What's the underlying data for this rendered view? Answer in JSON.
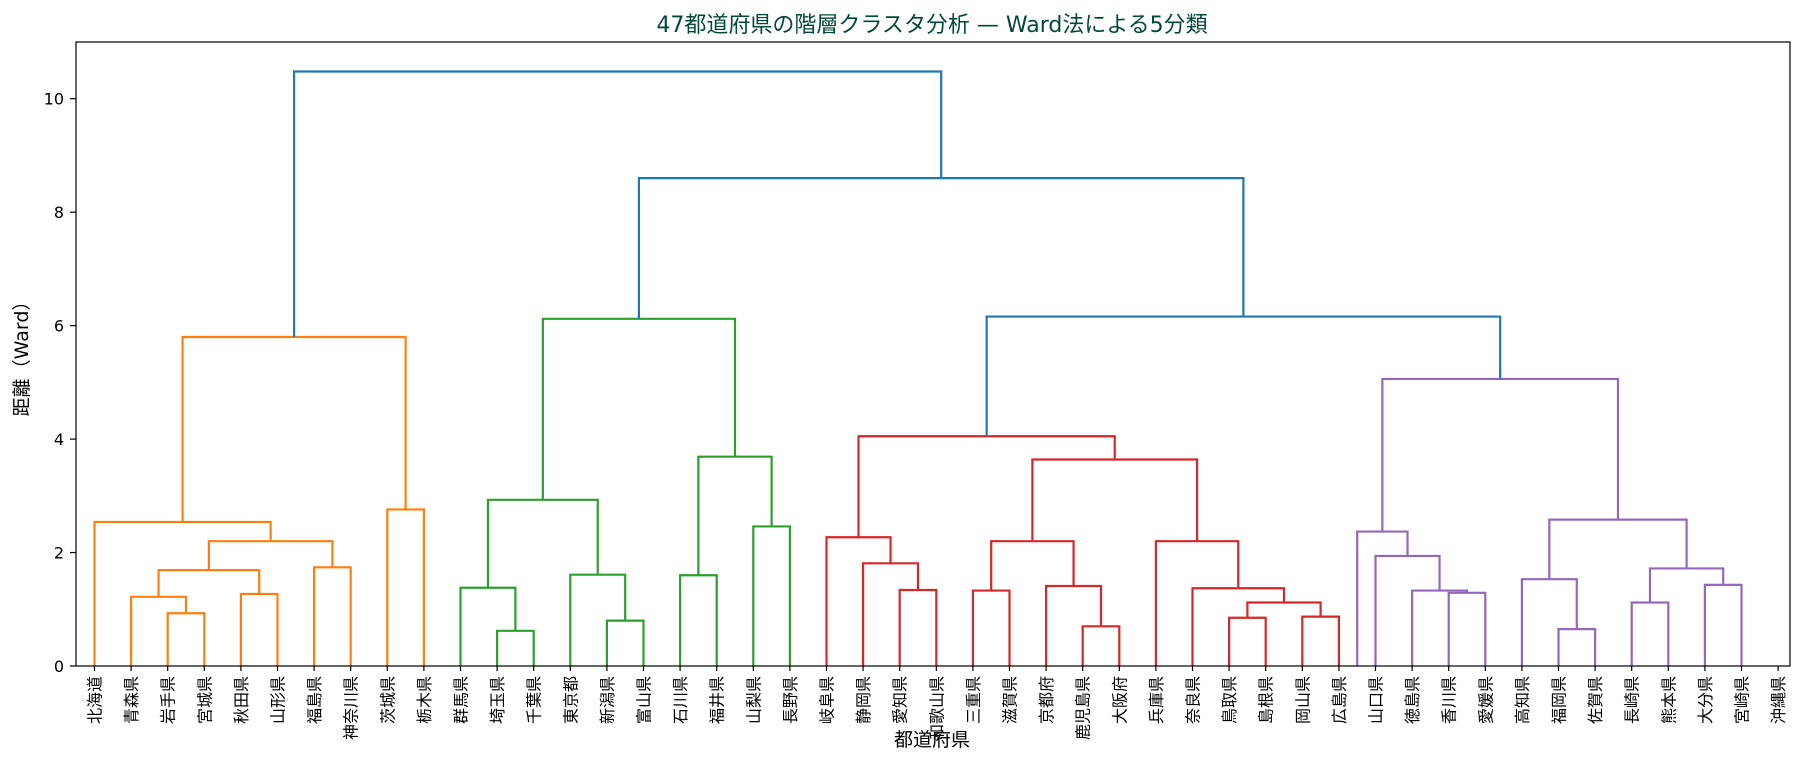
{
  "chart_data": {
    "type": "dendrogram",
    "title": "47都道府県の階層クラスタ分析 — Ward法による5分類",
    "xlabel": "都道府県",
    "ylabel": "距離（Ward）",
    "ylim": [
      0,
      11
    ],
    "yticks": [
      0,
      2,
      4,
      6,
      8,
      10
    ],
    "leaves": [
      "北海道",
      "青森県",
      "岩手県",
      "宮城県",
      "秋田県",
      "山形県",
      "福島県",
      "神奈川県",
      "茨城県",
      "栃木県",
      "群馬県",
      "埼玉県",
      "千葉県",
      "東京都",
      "新潟県",
      "富山県",
      "石川県",
      "福井県",
      "山梨県",
      "長野県",
      "岐阜県",
      "静岡県",
      "愛知県",
      "和歌山県",
      "三重県",
      "滋賀県",
      "京都府",
      "鹿児島県",
      "大阪府",
      "兵庫県",
      "奈良県",
      "鳥取県",
      "島根県",
      "岡山県",
      "広島県",
      "山口県",
      "徳島県",
      "香川県",
      "愛媛県",
      "高知県",
      "福岡県",
      "佐賀県",
      "長崎県",
      "熊本県",
      "大分県",
      "宮崎県",
      "沖縄県"
    ],
    "clusters": [
      {
        "name": "C1",
        "color": "#ff7f0e"
      },
      {
        "name": "C2",
        "color": "#2ca02c"
      },
      {
        "name": "C3",
        "color": "#d62728"
      },
      {
        "name": "C4",
        "color": "#9467bd"
      },
      {
        "name": "above-threshold",
        "color": "#1f77b4"
      }
    ],
    "links": [
      {
        "left": 2,
        "right": 3,
        "height": 0.93,
        "cluster": "C1"
      },
      {
        "left": 1,
        "right": "2-3",
        "height": 1.22,
        "cluster": "C1"
      },
      {
        "left": 4,
        "right": 5,
        "height": 1.27,
        "cluster": "C1"
      },
      {
        "left": "1-3",
        "right": "4-5",
        "height": 1.69,
        "cluster": "C1"
      },
      {
        "left": 6,
        "right": 7,
        "height": 1.74,
        "cluster": "C1"
      },
      {
        "left": "1-5",
        "right": "6-7",
        "height": 2.2,
        "cluster": "C1"
      },
      {
        "left": 0,
        "right": "1-7",
        "height": 2.54,
        "cluster": "C1"
      },
      {
        "left": 8,
        "right": 9,
        "height": 2.76,
        "cluster": "C1"
      },
      {
        "left": "0-7",
        "right": "8-9",
        "height": 5.8,
        "cluster": "C1"
      },
      {
        "left": 11,
        "right": 12,
        "height": 0.62,
        "cluster": "C2"
      },
      {
        "left": 10,
        "right": "11-12",
        "height": 1.38,
        "cluster": "C2"
      },
      {
        "left": 14,
        "right": 15,
        "height": 0.8,
        "cluster": "C2"
      },
      {
        "left": 13,
        "right": "14-15",
        "height": 1.61,
        "cluster": "C2"
      },
      {
        "left": "10-12",
        "right": "13-15",
        "height": 2.93,
        "cluster": "C2"
      },
      {
        "left": 16,
        "right": 17,
        "height": 1.6,
        "cluster": "C2"
      },
      {
        "left": 18,
        "right": 19,
        "height": 2.46,
        "cluster": "C2"
      },
      {
        "left": "16-17",
        "right": "18-19",
        "height": 3.69,
        "cluster": "C2"
      },
      {
        "left": "10-15",
        "right": "16-19",
        "height": 6.12,
        "cluster": "C2"
      },
      {
        "left": 22,
        "right": 23,
        "height": 1.34,
        "cluster": "C3"
      },
      {
        "left": 21,
        "right": "22-23",
        "height": 1.81,
        "cluster": "C3"
      },
      {
        "left": 20,
        "right": "21-23",
        "height": 2.27,
        "cluster": "C3"
      },
      {
        "left": 24,
        "right": 25,
        "height": 1.33,
        "cluster": "C3"
      },
      {
        "left": 27,
        "right": 28,
        "height": 0.7,
        "cluster": "C3"
      },
      {
        "left": 26,
        "right": "27-28",
        "height": 1.41,
        "cluster": "C3"
      },
      {
        "left": "24-25",
        "right": "26-28",
        "height": 2.2,
        "cluster": "C3"
      },
      {
        "left": 31,
        "right": 32,
        "height": 0.85,
        "cluster": "C3"
      },
      {
        "left": 33,
        "right": 34,
        "height": 0.87,
        "cluster": "C3"
      },
      {
        "left": "31-32",
        "right": "33-34",
        "height": 1.12,
        "cluster": "C3"
      },
      {
        "left": 30,
        "right": "31-34",
        "height": 1.37,
        "cluster": "C3"
      },
      {
        "left": 29,
        "right": "30-34",
        "height": 2.2,
        "cluster": "C3"
      },
      {
        "left": "24-28",
        "right": "29-34",
        "height": 3.64,
        "cluster": "C3"
      },
      {
        "left": "20-23",
        "right": "24-34",
        "height": 4.05,
        "cluster": "C3"
      },
      {
        "left": 37,
        "right": 38,
        "height": 1.29,
        "cluster": "C4"
      },
      {
        "left": 36,
        "right": "37-38",
        "height": 1.33,
        "cluster": "C4"
      },
      {
        "left": 35,
        "right": "36-38",
        "height": 1.94,
        "cluster": "C4"
      },
      {
        "left": 34.5,
        "right": "35-38",
        "height": 2.37,
        "cluster": "C4"
      },
      {
        "left": 40,
        "right": 41,
        "height": 0.65,
        "cluster": "C4"
      },
      {
        "left": 39,
        "right": "40-41",
        "height": 1.53,
        "cluster": "C4"
      },
      {
        "left": 42,
        "right": 43,
        "height": 1.12,
        "cluster": "C4"
      },
      {
        "left": 44,
        "right": 45,
        "height": 1.43,
        "cluster": "C4"
      },
      {
        "left": "42-43",
        "right": "44-45",
        "height": 1.72,
        "cluster": "C4"
      },
      {
        "left": "39-41",
        "right": "42-45",
        "height": 2.58,
        "cluster": "C4"
      },
      {
        "left": "34.5-38",
        "right": "39-45",
        "height": 5.06,
        "cluster": "C4"
      },
      {
        "left": "20-34",
        "right": "34.5-45",
        "height": 6.16,
        "cluster": "above-threshold"
      },
      {
        "left": "10-19",
        "right": "20-45",
        "height": 8.6,
        "cluster": "above-threshold"
      },
      {
        "left": "0-9",
        "right": "10-45",
        "height": 10.48,
        "cluster": "above-threshold"
      }
    ]
  },
  "colors": {
    "title": "#00493a",
    "frame": "#000000"
  }
}
